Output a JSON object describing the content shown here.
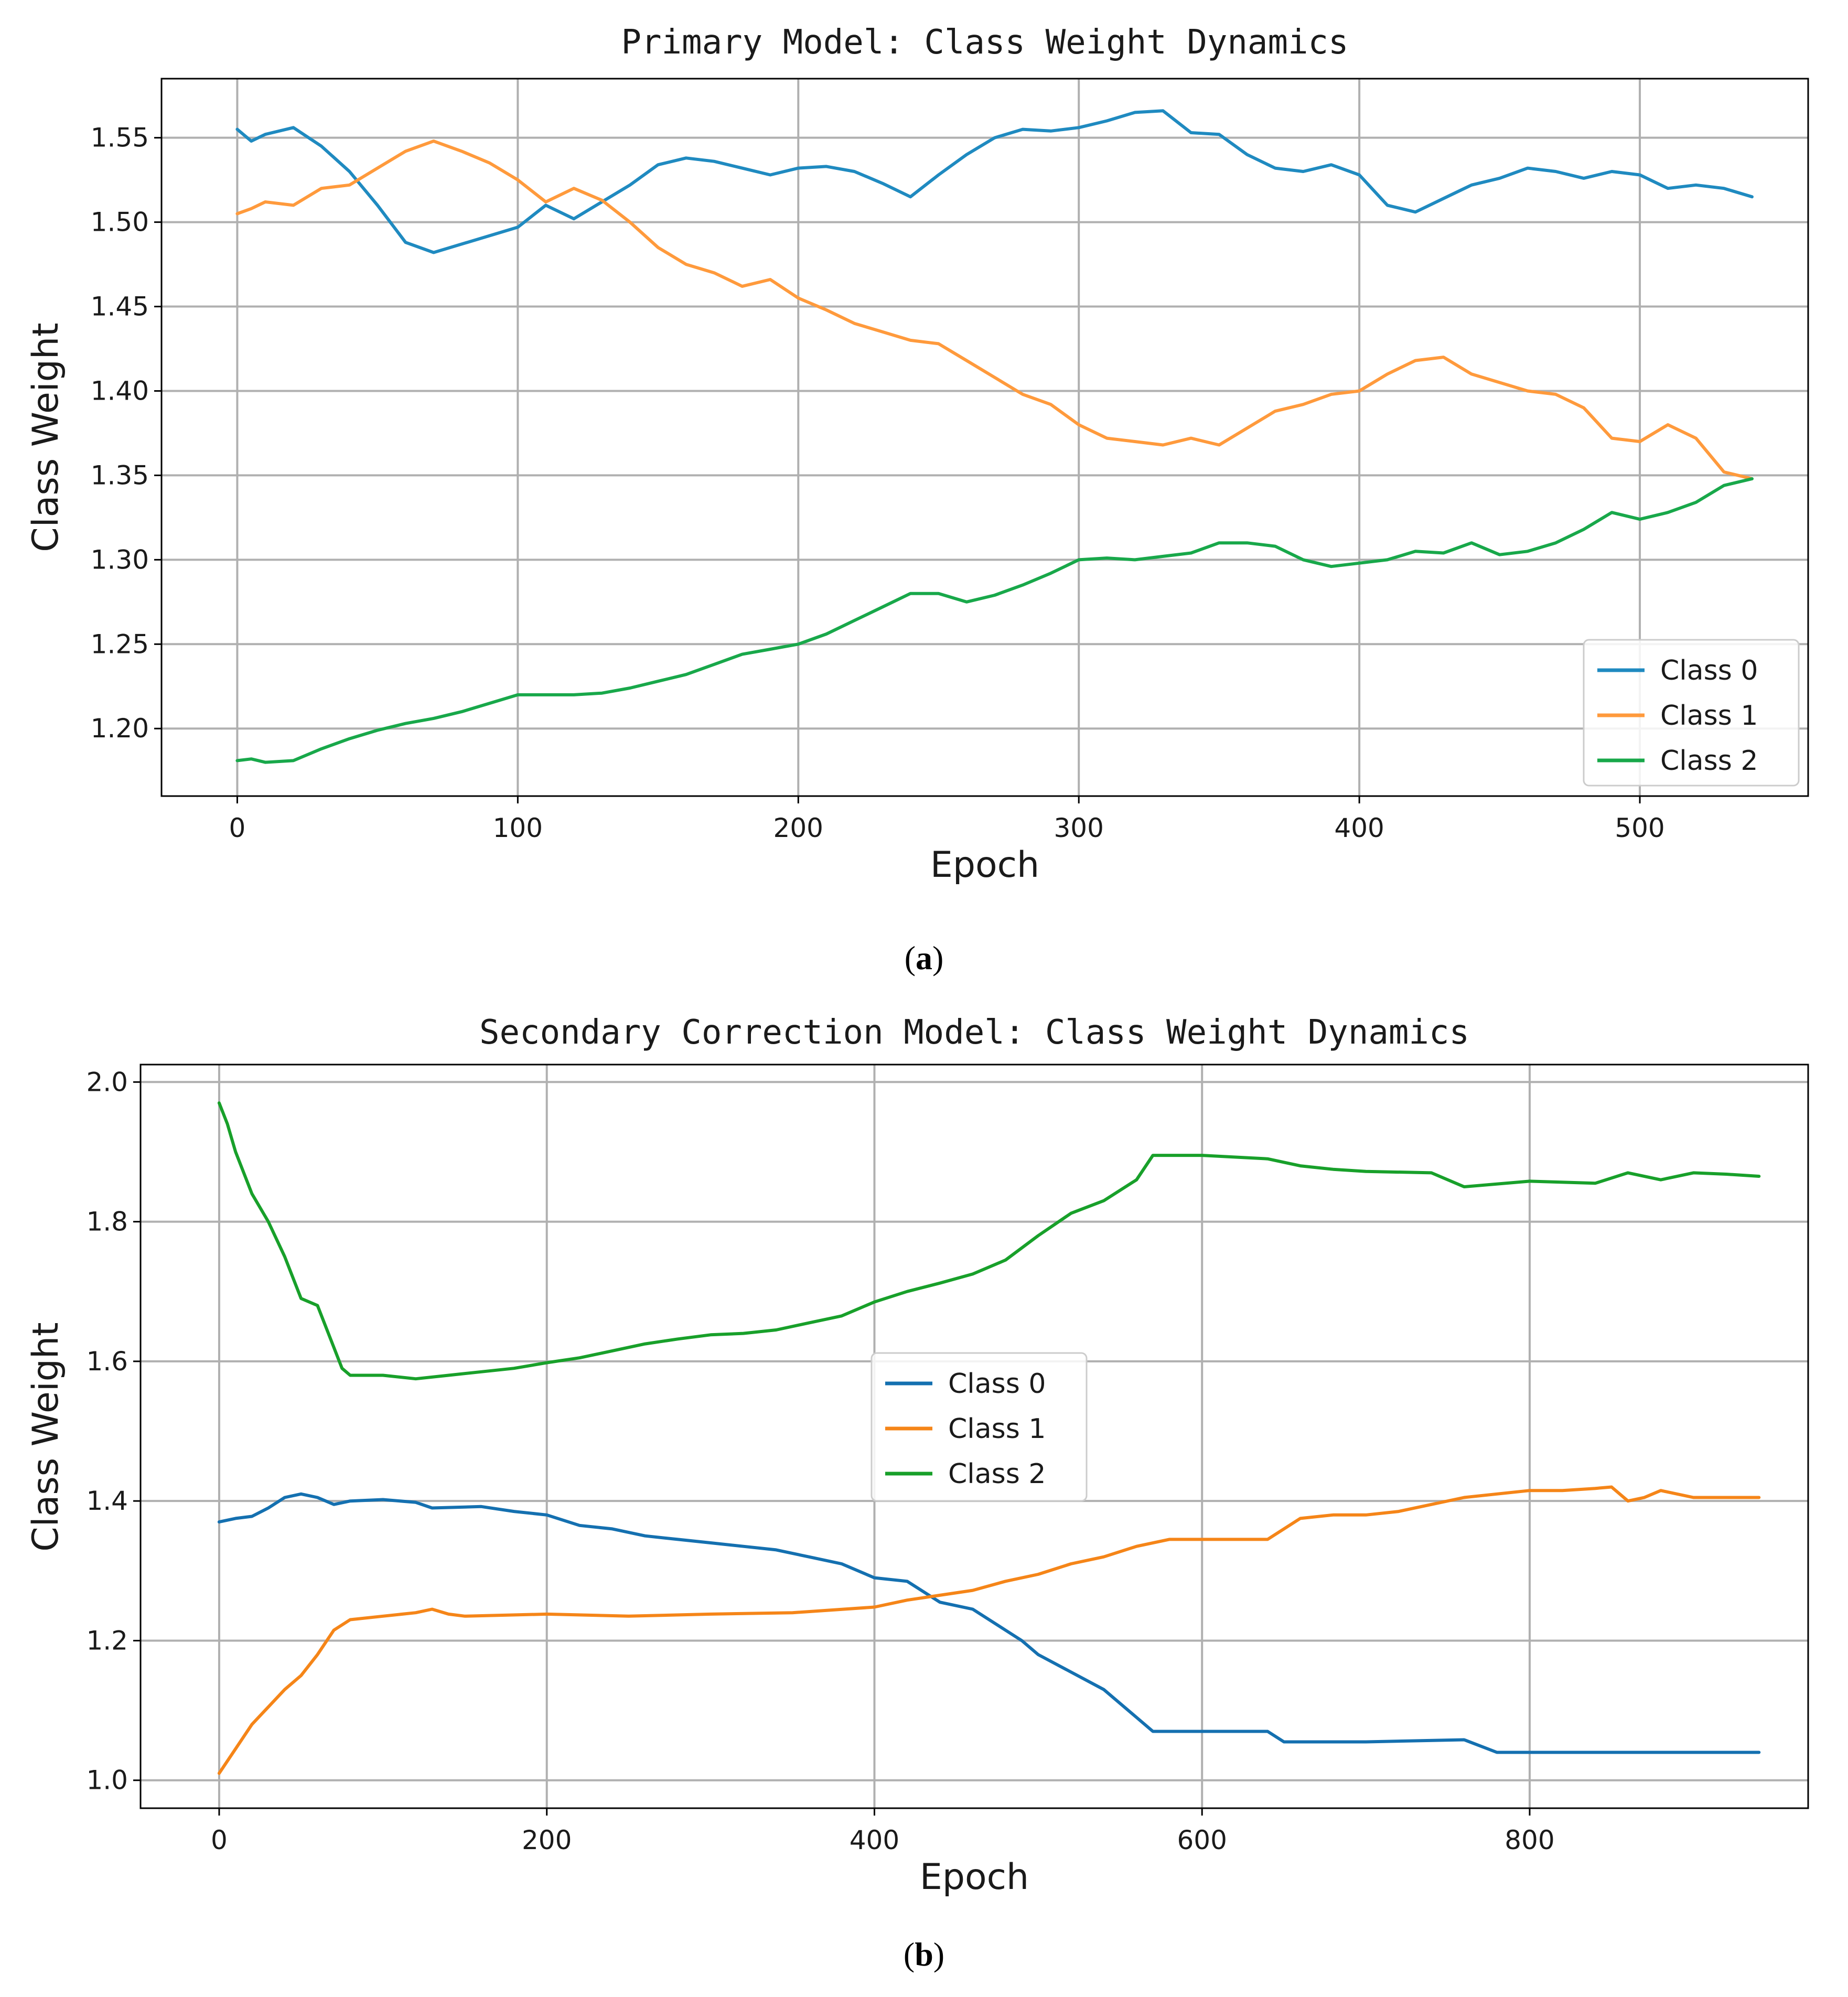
{
  "chart_data": [
    {
      "type": "line",
      "title": "Primary Model: Class Weight Dynamics",
      "xlabel": "Epoch",
      "ylabel": "Class Weight",
      "xlim": [
        -27,
        560
      ],
      "ylim": [
        1.16,
        1.585
      ],
      "xticks": [
        0,
        100,
        200,
        300,
        400,
        500
      ],
      "yticks": [
        1.2,
        1.25,
        1.3,
        1.35,
        1.4,
        1.45,
        1.5,
        1.55
      ],
      "ytick_decimals": 2,
      "grid": true,
      "legend_position": "lower right",
      "caption": "a",
      "series": [
        {
          "name": "Class 0",
          "color": "#1f8ac0",
          "x": [
            0,
            5,
            10,
            20,
            30,
            40,
            50,
            60,
            70,
            80,
            90,
            100,
            110,
            120,
            130,
            140,
            150,
            160,
            170,
            180,
            190,
            200,
            210,
            220,
            230,
            240,
            250,
            260,
            270,
            280,
            290,
            300,
            310,
            320,
            330,
            340,
            350,
            360,
            370,
            380,
            390,
            400,
            410,
            420,
            430,
            440,
            450,
            460,
            470,
            480,
            490,
            500,
            510,
            520,
            530,
            540
          ],
          "y": [
            1.555,
            1.548,
            1.552,
            1.556,
            1.545,
            1.53,
            1.51,
            1.488,
            1.482,
            1.487,
            1.492,
            1.497,
            1.51,
            1.502,
            1.512,
            1.522,
            1.534,
            1.538,
            1.536,
            1.532,
            1.528,
            1.532,
            1.533,
            1.53,
            1.523,
            1.515,
            1.528,
            1.54,
            1.55,
            1.555,
            1.554,
            1.556,
            1.56,
            1.565,
            1.566,
            1.553,
            1.552,
            1.54,
            1.532,
            1.53,
            1.534,
            1.528,
            1.51,
            1.506,
            1.514,
            1.522,
            1.526,
            1.532,
            1.53,
            1.526,
            1.53,
            1.528,
            1.52,
            1.522,
            1.52,
            1.515
          ]
        },
        {
          "name": "Class 1",
          "color": "#ff9a3c",
          "x": [
            0,
            5,
            10,
            20,
            30,
            40,
            50,
            60,
            70,
            80,
            90,
            100,
            110,
            120,
            130,
            140,
            150,
            160,
            170,
            180,
            190,
            200,
            210,
            220,
            230,
            240,
            250,
            260,
            270,
            280,
            290,
            300,
            310,
            320,
            330,
            340,
            350,
            360,
            370,
            380,
            390,
            400,
            410,
            420,
            430,
            440,
            450,
            460,
            470,
            480,
            490,
            500,
            510,
            520,
            530,
            540
          ],
          "y": [
            1.505,
            1.508,
            1.512,
            1.51,
            1.52,
            1.522,
            1.532,
            1.542,
            1.548,
            1.542,
            1.535,
            1.525,
            1.512,
            1.52,
            1.513,
            1.5,
            1.485,
            1.475,
            1.47,
            1.462,
            1.466,
            1.455,
            1.448,
            1.44,
            1.435,
            1.43,
            1.428,
            1.418,
            1.408,
            1.398,
            1.392,
            1.38,
            1.372,
            1.37,
            1.368,
            1.372,
            1.368,
            1.378,
            1.388,
            1.392,
            1.398,
            1.4,
            1.41,
            1.418,
            1.42,
            1.41,
            1.405,
            1.4,
            1.398,
            1.39,
            1.372,
            1.37,
            1.38,
            1.372,
            1.352,
            1.348
          ]
        },
        {
          "name": "Class 2",
          "color": "#18a84a",
          "x": [
            0,
            5,
            10,
            20,
            30,
            40,
            50,
            60,
            70,
            80,
            90,
            100,
            110,
            120,
            130,
            140,
            150,
            160,
            170,
            180,
            190,
            200,
            210,
            220,
            230,
            240,
            250,
            260,
            270,
            280,
            290,
            300,
            310,
            320,
            330,
            340,
            350,
            360,
            370,
            380,
            390,
            400,
            410,
            420,
            430,
            440,
            450,
            460,
            470,
            480,
            490,
            500,
            510,
            520,
            530,
            540
          ],
          "y": [
            1.181,
            1.182,
            1.18,
            1.181,
            1.188,
            1.194,
            1.199,
            1.203,
            1.206,
            1.21,
            1.215,
            1.22,
            1.22,
            1.22,
            1.221,
            1.224,
            1.228,
            1.232,
            1.238,
            1.244,
            1.247,
            1.25,
            1.256,
            1.264,
            1.272,
            1.28,
            1.28,
            1.275,
            1.279,
            1.285,
            1.292,
            1.3,
            1.301,
            1.3,
            1.302,
            1.304,
            1.31,
            1.31,
            1.308,
            1.3,
            1.296,
            1.298,
            1.3,
            1.305,
            1.304,
            1.31,
            1.303,
            1.305,
            1.31,
            1.318,
            1.328,
            1.324,
            1.328,
            1.334,
            1.344,
            1.348
          ]
        }
      ]
    },
    {
      "type": "line",
      "title": "Secondary Correction Model: Class Weight Dynamics",
      "xlabel": "Epoch",
      "ylabel": "Class Weight",
      "xlim": [
        -48,
        970
      ],
      "ylim": [
        0.96,
        2.025
      ],
      "xticks": [
        0,
        200,
        400,
        600,
        800
      ],
      "yticks": [
        1.0,
        1.2,
        1.4,
        1.6,
        1.8,
        2.0
      ],
      "ytick_decimals": 1,
      "grid": true,
      "legend_position": "center",
      "caption": "b",
      "series": [
        {
          "name": "Class 0",
          "color": "#1470b0",
          "x": [
            0,
            10,
            20,
            30,
            40,
            50,
            60,
            70,
            80,
            100,
            120,
            130,
            160,
            180,
            200,
            220,
            240,
            260,
            280,
            300,
            320,
            340,
            360,
            380,
            400,
            420,
            440,
            460,
            480,
            490,
            500,
            520,
            540,
            560,
            570,
            600,
            640,
            650,
            680,
            700,
            760,
            780,
            800,
            850,
            900,
            940
          ],
          "y": [
            1.37,
            1.375,
            1.378,
            1.39,
            1.405,
            1.41,
            1.405,
            1.395,
            1.4,
            1.402,
            1.398,
            1.39,
            1.392,
            1.385,
            1.38,
            1.365,
            1.36,
            1.35,
            1.345,
            1.34,
            1.335,
            1.33,
            1.32,
            1.31,
            1.29,
            1.285,
            1.255,
            1.245,
            1.215,
            1.2,
            1.18,
            1.155,
            1.13,
            1.09,
            1.07,
            1.07,
            1.07,
            1.055,
            1.055,
            1.055,
            1.058,
            1.04,
            1.04,
            1.04,
            1.04,
            1.04
          ]
        },
        {
          "name": "Class 1",
          "color": "#f58518",
          "x": [
            0,
            10,
            20,
            30,
            40,
            50,
            60,
            70,
            80,
            100,
            120,
            130,
            140,
            150,
            200,
            250,
            300,
            350,
            400,
            420,
            440,
            460,
            480,
            500,
            520,
            540,
            560,
            580,
            600,
            640,
            660,
            680,
            700,
            720,
            740,
            760,
            780,
            800,
            820,
            840,
            850,
            860,
            870,
            880,
            900,
            940
          ],
          "y": [
            1.01,
            1.045,
            1.08,
            1.105,
            1.13,
            1.15,
            1.18,
            1.215,
            1.23,
            1.235,
            1.24,
            1.245,
            1.238,
            1.235,
            1.238,
            1.235,
            1.238,
            1.24,
            1.248,
            1.258,
            1.265,
            1.272,
            1.285,
            1.295,
            1.31,
            1.32,
            1.335,
            1.345,
            1.345,
            1.345,
            1.375,
            1.38,
            1.38,
            1.385,
            1.395,
            1.405,
            1.41,
            1.415,
            1.415,
            1.418,
            1.42,
            1.4,
            1.405,
            1.415,
            1.405,
            1.405
          ]
        },
        {
          "name": "Class 2",
          "color": "#18a02a",
          "x": [
            0,
            5,
            10,
            20,
            30,
            40,
            50,
            60,
            70,
            75,
            80,
            100,
            120,
            140,
            160,
            180,
            200,
            220,
            240,
            260,
            280,
            300,
            320,
            340,
            360,
            380,
            400,
            420,
            440,
            460,
            480,
            500,
            520,
            540,
            560,
            570,
            600,
            640,
            660,
            680,
            700,
            740,
            760,
            800,
            840,
            860,
            880,
            900,
            920,
            940
          ],
          "y": [
            1.97,
            1.94,
            1.9,
            1.84,
            1.8,
            1.75,
            1.69,
            1.68,
            1.62,
            1.59,
            1.58,
            1.58,
            1.575,
            1.58,
            1.585,
            1.59,
            1.598,
            1.605,
            1.615,
            1.625,
            1.632,
            1.638,
            1.64,
            1.645,
            1.655,
            1.665,
            1.685,
            1.7,
            1.712,
            1.725,
            1.745,
            1.78,
            1.812,
            1.83,
            1.86,
            1.895,
            1.895,
            1.89,
            1.88,
            1.875,
            1.872,
            1.87,
            1.85,
            1.858,
            1.855,
            1.87,
            1.86,
            1.87,
            1.868,
            1.865
          ]
        }
      ]
    }
  ]
}
